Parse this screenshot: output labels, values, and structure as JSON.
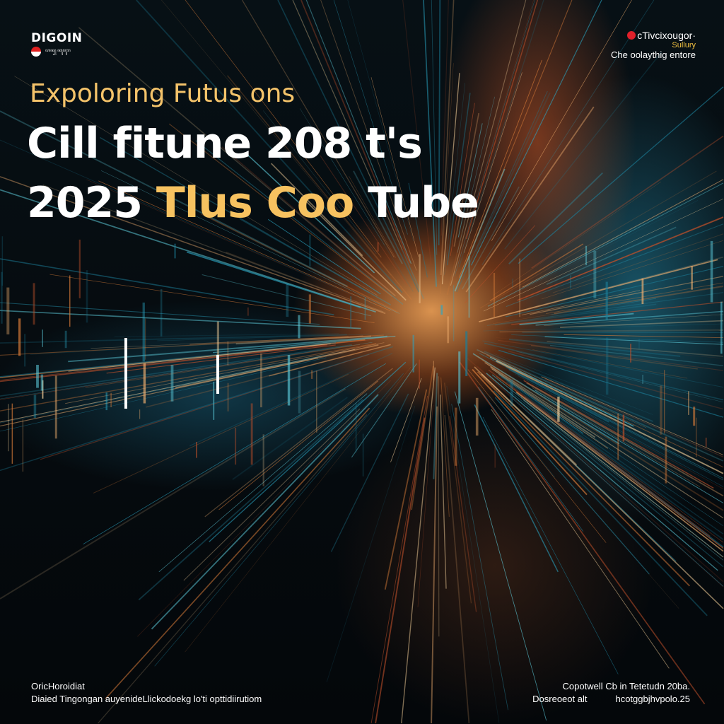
{
  "logo": {
    "name": "DIGOIN",
    "tagline": "ꦲꦤ꧀ ꦏꦸꦩꦸꦫ"
  },
  "top_right": {
    "line1": "cTivcixougor·",
    "line2": "Sullury",
    "line3": "Che oolaythig entore"
  },
  "headline": {
    "line1": "Expoloring Futus ons",
    "line2": "Cill fitune 208 t's",
    "line3_white": "2025",
    "line3_gold": "Tlus Coo",
    "line3_end": "Tube"
  },
  "bottom_left": {
    "line1": "OricHoroidiat",
    "line2": "Diaied Tingongan auyenideLlickodoekg lo'ti opttidiirutiom"
  },
  "bottom_right": {
    "line1": "Copotwell Cb in Tetetudn 20ba.",
    "line2a": "Dosreoeot alt",
    "line2b": "hcotggbjhvpolo.25"
  },
  "colors": {
    "accent_gold": "#f7c260",
    "text": "#ffffff",
    "flag_red": "#e02020"
  }
}
